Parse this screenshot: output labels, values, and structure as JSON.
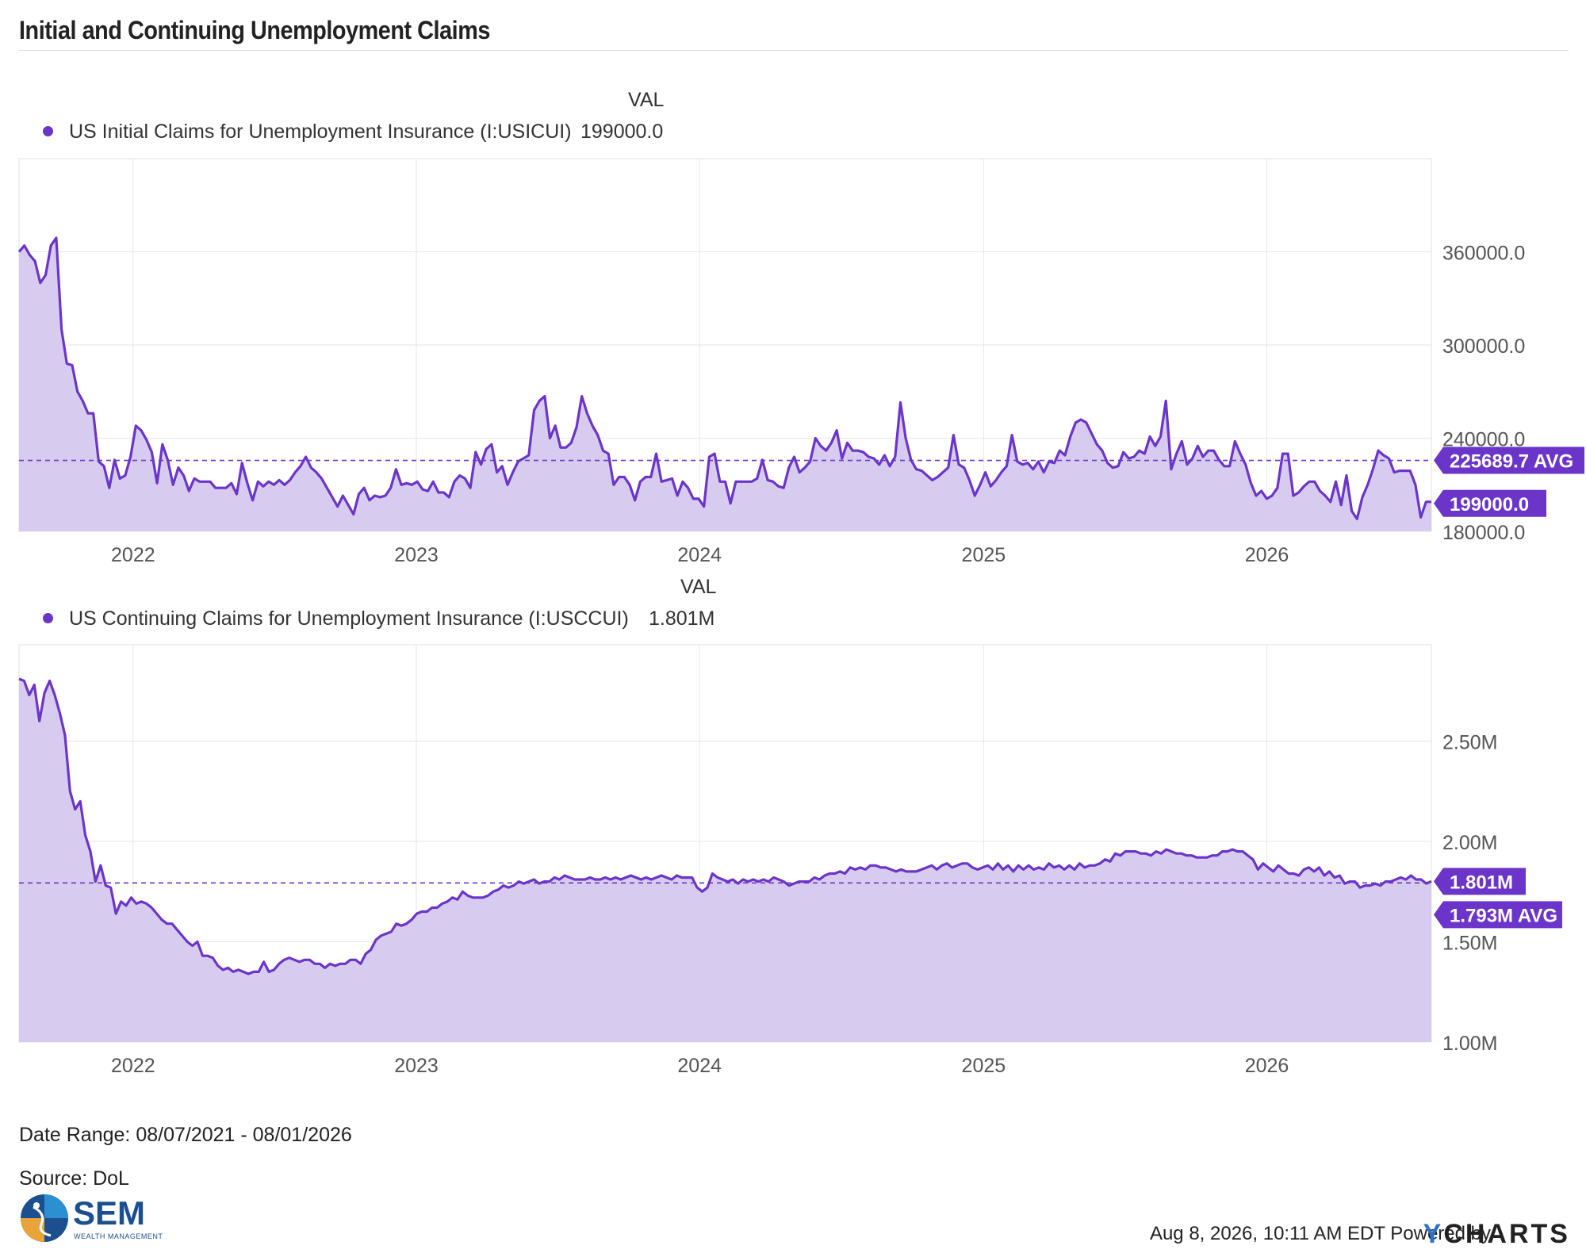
{
  "header": {
    "title": "Initial and Continuing Unemployment Claims"
  },
  "chart_data": [
    {
      "type": "area",
      "legend_header": "VAL",
      "series": [
        {
          "name": "US Initial Claims for Unemployment Insurance (I:USICUI)",
          "latest_value_label": "199000.0",
          "color": "#6b35c9",
          "x_start": "2021-08-07",
          "x_end": "2026-08-01",
          "frequency": "weekly",
          "values": [
            360000,
            364000,
            358000,
            354000,
            340000,
            345000,
            364000,
            369000,
            310000,
            288000,
            287000,
            270000,
            264000,
            256000,
            256000,
            225000,
            222000,
            208000,
            226000,
            214000,
            216000,
            228000,
            248000,
            245000,
            239000,
            231000,
            211000,
            236000,
            226000,
            210000,
            221000,
            216000,
            206000,
            214000,
            212000,
            212000,
            212000,
            208000,
            208000,
            208000,
            211000,
            204000,
            224000,
            211000,
            200000,
            212000,
            209000,
            212000,
            210000,
            213000,
            210000,
            213000,
            218000,
            222000,
            228000,
            221000,
            218000,
            214000,
            208000,
            202000,
            196000,
            203000,
            197000,
            191000,
            204000,
            208000,
            200000,
            203000,
            202000,
            203000,
            208000,
            220000,
            210000,
            211000,
            210000,
            212000,
            207000,
            206000,
            212000,
            205000,
            205000,
            202000,
            212000,
            216000,
            214000,
            208000,
            231000,
            223000,
            233000,
            236000,
            218000,
            222000,
            210000,
            218000,
            225000,
            227000,
            229000,
            258000,
            264000,
            267000,
            240000,
            248000,
            234000,
            234000,
            237000,
            247000,
            267000,
            256000,
            248000,
            242000,
            232000,
            230000,
            210000,
            215000,
            215000,
            210000,
            200000,
            212000,
            215000,
            215000,
            230000,
            212000,
            213000,
            214000,
            203000,
            212000,
            208000,
            201000,
            201000,
            196000,
            228000,
            230000,
            212000,
            212000,
            198000,
            212000,
            212000,
            212000,
            212000,
            214000,
            226000,
            213000,
            212000,
            209000,
            208000,
            221000,
            228000,
            218000,
            221000,
            225000,
            240000,
            235000,
            232000,
            237000,
            245000,
            227000,
            237000,
            232000,
            232000,
            231000,
            228000,
            227000,
            223000,
            229000,
            222000,
            228000,
            263000,
            240000,
            226000,
            220000,
            219000,
            216000,
            213000,
            215000,
            218000,
            221000,
            242000,
            223000,
            221000,
            213000,
            203000,
            210000,
            218000,
            209000,
            213000,
            218000,
            222000,
            242000,
            225000,
            223000,
            224000,
            220000,
            225000,
            218000,
            225000,
            224000,
            232000,
            229000,
            241000,
            250000,
            252000,
            250000,
            243000,
            236000,
            232000,
            224000,
            221000,
            222000,
            231000,
            227000,
            228000,
            232000,
            230000,
            241000,
            235000,
            241000,
            264000,
            220000,
            230000,
            238000,
            223000,
            227000,
            235000,
            228000,
            232000,
            232000,
            226000,
            222000,
            222000,
            238000,
            230000,
            223000,
            211000,
            203000,
            206000,
            201000,
            203000,
            208000,
            230000,
            230000,
            203000,
            205000,
            209000,
            212000,
            212000,
            206000,
            203000,
            199000,
            212000,
            197000,
            216000,
            193000,
            188000,
            202000,
            210000,
            220000,
            232000,
            229000,
            227000,
            218000,
            219000,
            219000,
            219000,
            210000,
            189000,
            199000,
            199000
          ]
        }
      ],
      "average": {
        "value": 225689.7,
        "label": "225689.7 AVG"
      },
      "y_ticks": [
        "180000.0",
        "240000.0",
        "300000.0",
        "360000.0"
      ],
      "x_ticks": [
        "2022",
        "2023",
        "2024",
        "2025",
        "2026"
      ],
      "ylim": [
        180000,
        420000
      ],
      "grid": true,
      "legend_position": "top-left"
    },
    {
      "type": "area",
      "legend_header": "VAL",
      "series": [
        {
          "name": "US Continuing Claims for Unemployment Insurance (I:USCCUI)",
          "latest_value_label": "1.801M",
          "color": "#6b35c9",
          "x_start": "2021-08-07",
          "x_end": "2026-08-01",
          "frequency": "weekly",
          "values": [
            2.81,
            2.8,
            2.73,
            2.78,
            2.6,
            2.74,
            2.8,
            2.73,
            2.64,
            2.53,
            2.25,
            2.16,
            2.2,
            2.03,
            1.95,
            1.8,
            1.88,
            1.78,
            1.77,
            1.64,
            1.7,
            1.68,
            1.72,
            1.69,
            1.7,
            1.69,
            1.67,
            1.64,
            1.61,
            1.59,
            1.59,
            1.56,
            1.53,
            1.5,
            1.48,
            1.5,
            1.43,
            1.43,
            1.42,
            1.38,
            1.36,
            1.37,
            1.35,
            1.36,
            1.35,
            1.34,
            1.35,
            1.35,
            1.4,
            1.35,
            1.36,
            1.39,
            1.41,
            1.42,
            1.41,
            1.4,
            1.41,
            1.41,
            1.39,
            1.39,
            1.37,
            1.39,
            1.38,
            1.39,
            1.39,
            1.41,
            1.41,
            1.39,
            1.44,
            1.46,
            1.51,
            1.53,
            1.54,
            1.55,
            1.59,
            1.58,
            1.59,
            1.61,
            1.64,
            1.65,
            1.65,
            1.67,
            1.67,
            1.69,
            1.7,
            1.72,
            1.71,
            1.75,
            1.73,
            1.72,
            1.72,
            1.72,
            1.73,
            1.75,
            1.76,
            1.78,
            1.77,
            1.78,
            1.8,
            1.79,
            1.8,
            1.81,
            1.79,
            1.8,
            1.8,
            1.82,
            1.81,
            1.83,
            1.82,
            1.81,
            1.81,
            1.81,
            1.82,
            1.81,
            1.81,
            1.82,
            1.81,
            1.82,
            1.81,
            1.82,
            1.83,
            1.82,
            1.81,
            1.82,
            1.81,
            1.82,
            1.83,
            1.82,
            1.81,
            1.83,
            1.82,
            1.82,
            1.82,
            1.77,
            1.75,
            1.77,
            1.84,
            1.82,
            1.81,
            1.8,
            1.81,
            1.79,
            1.81,
            1.8,
            1.81,
            1.8,
            1.81,
            1.8,
            1.82,
            1.81,
            1.8,
            1.78,
            1.79,
            1.8,
            1.8,
            1.8,
            1.82,
            1.81,
            1.83,
            1.84,
            1.84,
            1.85,
            1.84,
            1.87,
            1.86,
            1.87,
            1.86,
            1.88,
            1.88,
            1.87,
            1.87,
            1.86,
            1.85,
            1.86,
            1.85,
            1.85,
            1.85,
            1.86,
            1.87,
            1.88,
            1.86,
            1.88,
            1.89,
            1.87,
            1.88,
            1.89,
            1.89,
            1.87,
            1.86,
            1.87,
            1.88,
            1.86,
            1.89,
            1.86,
            1.88,
            1.85,
            1.88,
            1.86,
            1.88,
            1.86,
            1.87,
            1.86,
            1.89,
            1.87,
            1.88,
            1.86,
            1.88,
            1.86,
            1.89,
            1.87,
            1.88,
            1.88,
            1.89,
            1.91,
            1.9,
            1.94,
            1.93,
            1.95,
            1.95,
            1.95,
            1.94,
            1.94,
            1.93,
            1.95,
            1.94,
            1.96,
            1.95,
            1.94,
            1.94,
            1.93,
            1.93,
            1.92,
            1.92,
            1.92,
            1.93,
            1.93,
            1.95,
            1.95,
            1.96,
            1.95,
            1.95,
            1.93,
            1.91,
            1.86,
            1.89,
            1.87,
            1.85,
            1.88,
            1.86,
            1.84,
            1.84,
            1.83,
            1.86,
            1.87,
            1.85,
            1.87,
            1.83,
            1.85,
            1.82,
            1.83,
            1.79,
            1.8,
            1.8,
            1.77,
            1.78,
            1.78,
            1.79,
            1.78,
            1.8,
            1.8,
            1.81,
            1.82,
            1.81,
            1.83,
            1.81,
            1.81,
            1.79,
            1.801
          ]
        }
      ],
      "average": {
        "value": 1.793,
        "label": "1.793M AVG"
      },
      "y_ticks": [
        "1.00M",
        "1.50M",
        "2.00M",
        "2.50M"
      ],
      "x_ticks": [
        "2022",
        "2023",
        "2024",
        "2025",
        "2026"
      ],
      "ylim": [
        1.0,
        2.98
      ],
      "grid": true,
      "legend_position": "top-left"
    }
  ],
  "footer": {
    "date_range": "Date Range: 08/07/2021 - 08/01/2026",
    "source": "Source: DoL",
    "logo_text": "SEM",
    "logo_subtext": "WEALTH MANAGEMENT",
    "timestamp": "Aug 8, 2026, 10:11 AM EDT Powered by",
    "brand_y": "Y",
    "brand_rest": "CHARTS"
  }
}
